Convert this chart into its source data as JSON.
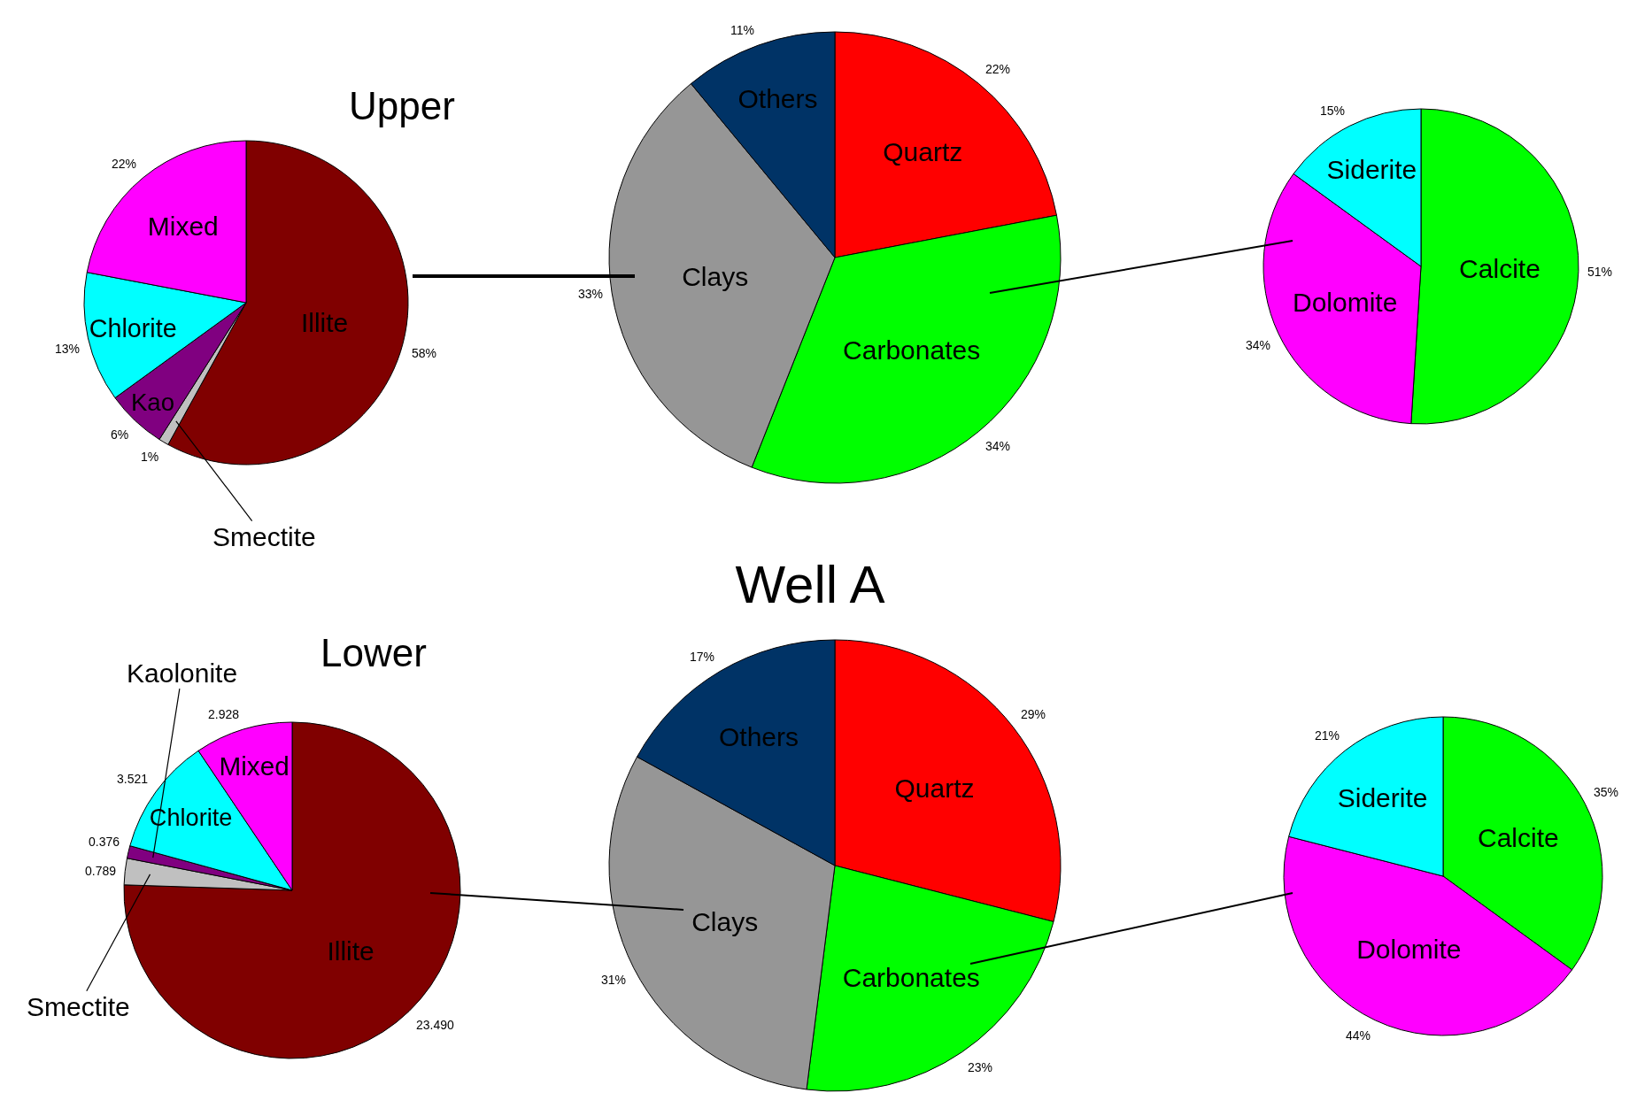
{
  "chart_data": [
    {
      "type": "pie",
      "title": "Upper",
      "categories": [
        "Illite",
        "Smectite",
        "Kao",
        "Chlorite",
        "Mixed"
      ],
      "values": [
        58,
        1,
        6,
        13,
        22
      ],
      "colors": [
        "#800000",
        "#c0c0c0",
        "#800080",
        "#00ffff",
        "#ff00ff"
      ],
      "value_labels": [
        "58%",
        "1%",
        "6%",
        "13%",
        "22%"
      ]
    },
    {
      "type": "pie",
      "categories": [
        "Quartz",
        "Carbonates",
        "Clays",
        "Others"
      ],
      "values": [
        22,
        34,
        33,
        11
      ],
      "colors": [
        "#ff0000",
        "#00ff00",
        "#969696",
        "#003366"
      ],
      "value_labels": [
        "22%",
        "34%",
        "33%",
        "11%"
      ]
    },
    {
      "type": "pie",
      "categories": [
        "Calcite",
        "Dolomite",
        "Siderite"
      ],
      "values": [
        51,
        34,
        15
      ],
      "colors": [
        "#00ff00",
        "#ff00ff",
        "#00ffff"
      ],
      "value_labels": [
        "51%",
        "34%",
        "15%"
      ]
    },
    {
      "type": "pie",
      "title": "Lower",
      "categories": [
        "Illite",
        "Smectite",
        "Kaolonite",
        "Chlorite",
        "Mixed"
      ],
      "values": [
        23.49,
        0.789,
        0.376,
        3.521,
        2.928
      ],
      "colors": [
        "#800000",
        "#c0c0c0",
        "#800080",
        "#00ffff",
        "#ff00ff"
      ],
      "value_labels": [
        "23.490",
        "0.789",
        "0.376",
        "3.521",
        "2.928"
      ]
    },
    {
      "type": "pie",
      "title": "Well A",
      "categories": [
        "Quartz",
        "Carbonates",
        "Clays",
        "Others"
      ],
      "values": [
        29,
        23,
        31,
        17
      ],
      "colors": [
        "#ff0000",
        "#00ff00",
        "#969696",
        "#003366"
      ],
      "value_labels": [
        "29%",
        "23%",
        "31%",
        "17%"
      ]
    },
    {
      "type": "pie",
      "categories": [
        "Calcite",
        "Dolomite",
        "Siderite"
      ],
      "values": [
        35,
        44,
        21
      ],
      "colors": [
        "#00ff00",
        "#ff00ff",
        "#00ffff"
      ],
      "value_labels": [
        "35%",
        "44%",
        "21%"
      ]
    }
  ]
}
